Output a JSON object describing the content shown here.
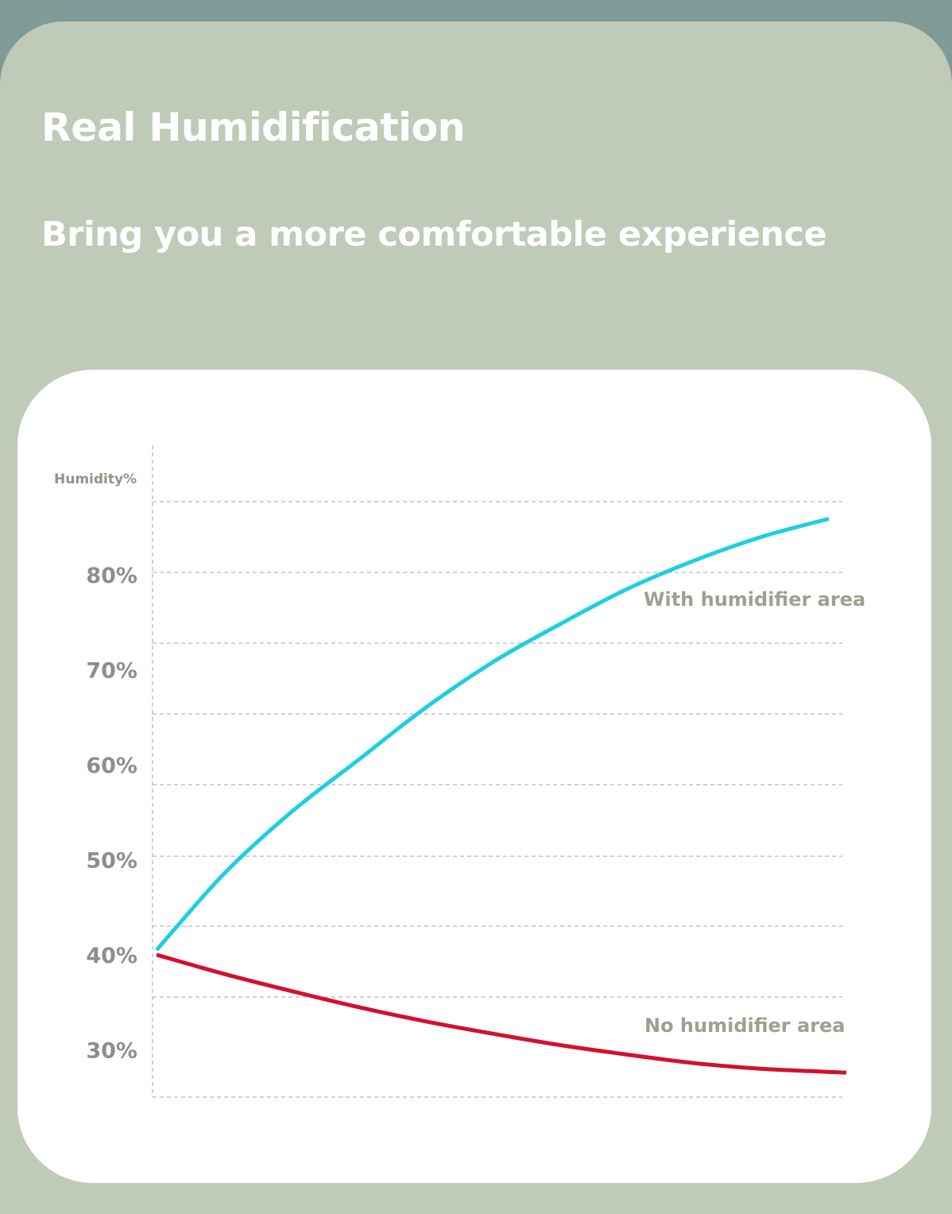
{
  "header": {
    "title": "Real Humidification",
    "subtitle": "Bring you a more comfortable experience"
  },
  "chart_data": {
    "type": "line",
    "title": "",
    "xlabel": "",
    "ylabel": "Humidity%",
    "ylim": [
      25,
      90
    ],
    "y_ticks": [
      {
        "value": 80,
        "label": "80%"
      },
      {
        "value": 70,
        "label": "70%"
      },
      {
        "value": 60,
        "label": "60%"
      },
      {
        "value": 50,
        "label": "50%"
      },
      {
        "value": 40,
        "label": "40%"
      },
      {
        "value": 30,
        "label": "30%"
      }
    ],
    "grid": true,
    "series": [
      {
        "name": "With humidifier area",
        "color": "#1ecfe0",
        "x": [
          0,
          1,
          2,
          3,
          4,
          5,
          6,
          7,
          8,
          9,
          10
        ],
        "values": [
          40.5,
          48.5,
          55,
          60.5,
          66,
          70.8,
          74.8,
          78.5,
          81.5,
          84,
          85.9
        ]
      },
      {
        "name": "No humidifier area",
        "color": "#d4102e",
        "x": [
          0,
          1,
          2,
          3,
          4,
          5,
          6,
          7,
          8,
          9,
          10.26
        ],
        "values": [
          40,
          38,
          36.2,
          34.5,
          33,
          31.7,
          30.5,
          29.5,
          28.6,
          28,
          27.6
        ]
      }
    ]
  }
}
